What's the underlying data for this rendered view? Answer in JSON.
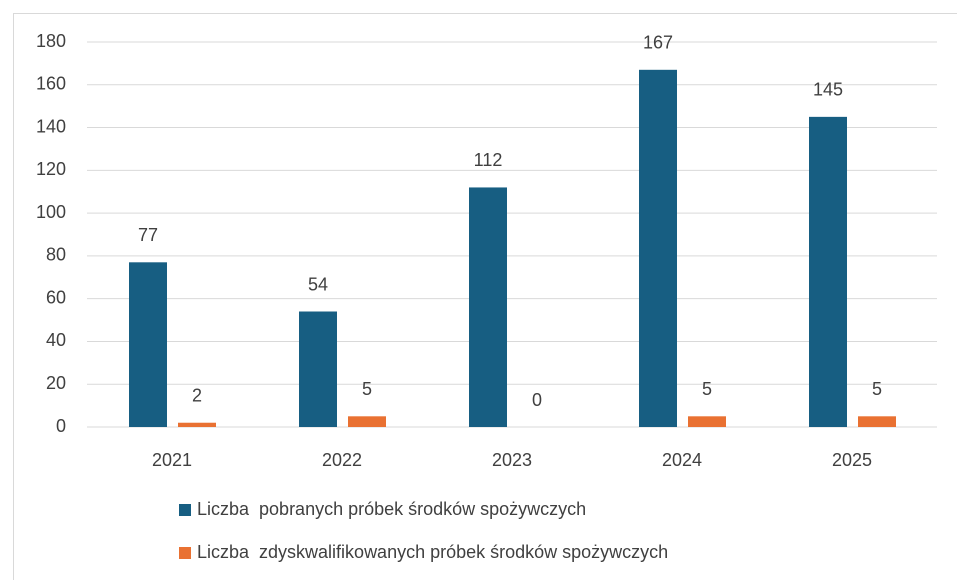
{
  "chart_data": {
    "type": "bar",
    "categories": [
      "2021",
      "2022",
      "2023",
      "2024",
      "2025"
    ],
    "series": [
      {
        "name": "Liczba  pobranych próbek środków spożywczych",
        "color": "#175e82",
        "values": [
          77,
          54,
          112,
          167,
          145
        ]
      },
      {
        "name": "Liczba  zdyskwalifikowanych próbek środków spożywczych",
        "color": "#e97132",
        "values": [
          2,
          5,
          0,
          5,
          5
        ]
      }
    ],
    "ylim": [
      0,
      180
    ],
    "yticks": [
      0,
      20,
      40,
      60,
      80,
      100,
      120,
      140,
      160,
      180
    ],
    "grid": true,
    "legend": "bottom",
    "data_labels": true
  }
}
